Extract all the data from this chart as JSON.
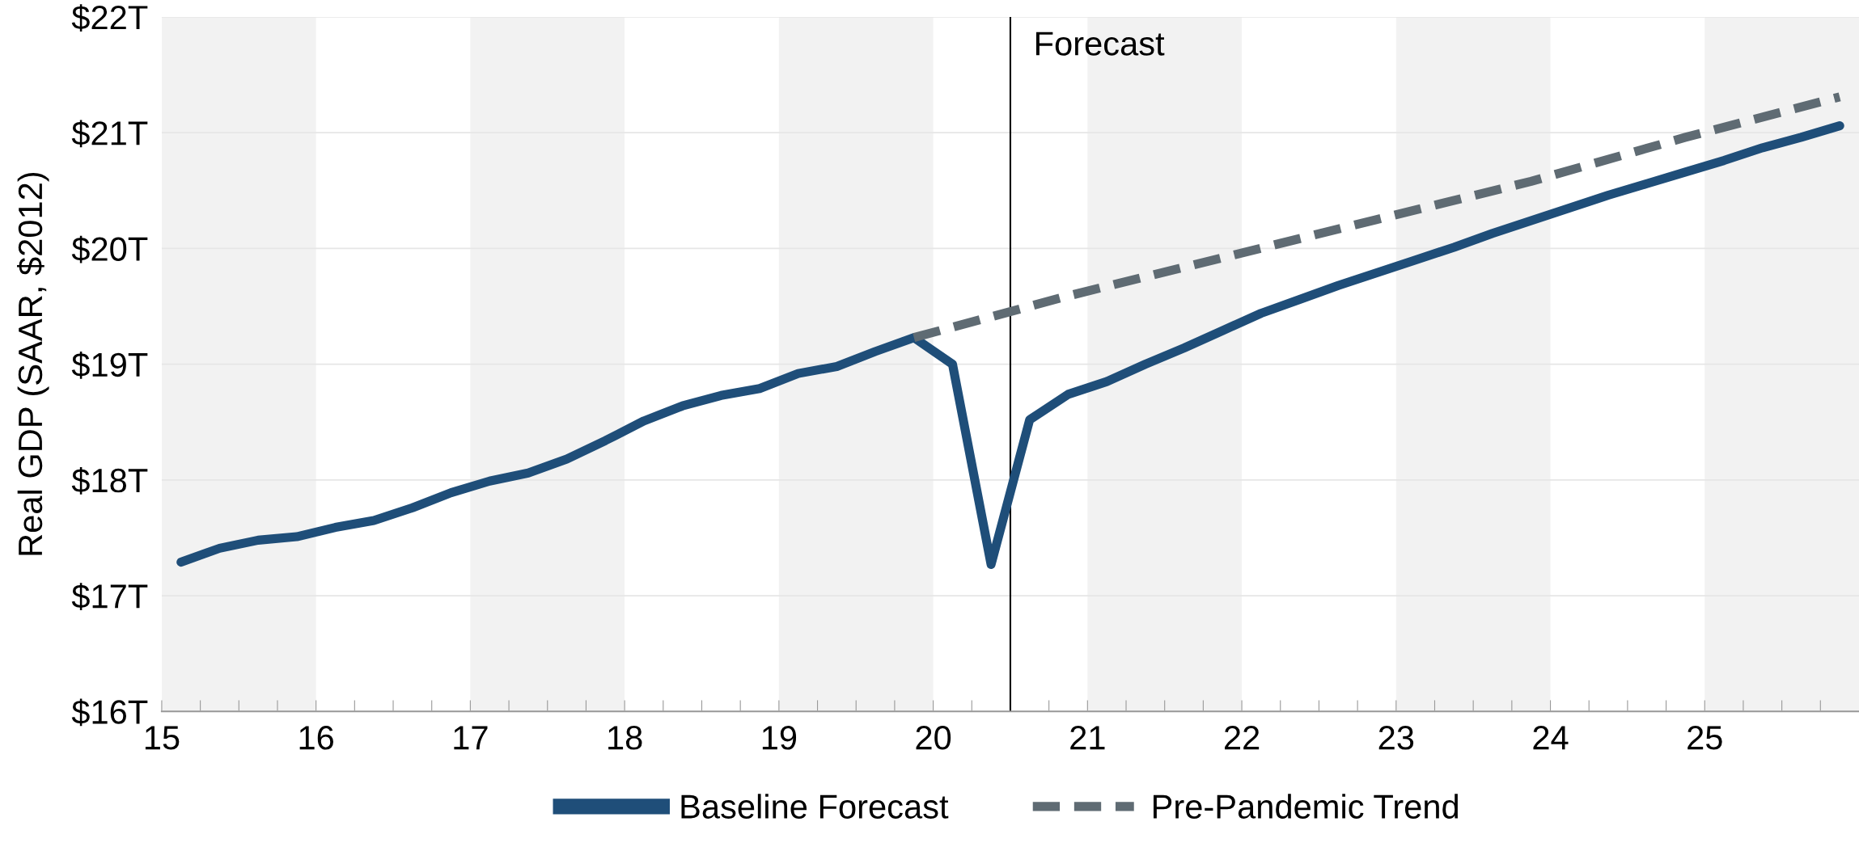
{
  "chart_data": {
    "type": "line",
    "ylabel": "Real GDP (SAAR, $2012)",
    "xlim": [
      15,
      26
    ],
    "ylim": [
      16,
      22
    ],
    "xticks": [
      15,
      {
        "value": 15.25,
        "label": null
      },
      {
        "value": 15.5,
        "label": null
      },
      {
        "value": 15.75,
        "label": null
      },
      16,
      {
        "value": 16.25,
        "label": null
      },
      {
        "value": 16.5,
        "label": null
      },
      {
        "value": 16.75,
        "label": null
      },
      17,
      {
        "value": 17.25,
        "label": null
      },
      {
        "value": 17.5,
        "label": null
      },
      {
        "value": 17.75,
        "label": null
      },
      18,
      {
        "value": 18.25,
        "label": null
      },
      {
        "value": 18.5,
        "label": null
      },
      {
        "value": 18.75,
        "label": null
      },
      19,
      {
        "value": 19.25,
        "label": null
      },
      {
        "value": 19.5,
        "label": null
      },
      {
        "value": 19.75,
        "label": null
      },
      20,
      {
        "value": 20.25,
        "label": null
      },
      {
        "value": 20.5,
        "label": null
      },
      {
        "value": 20.75,
        "label": null
      },
      21,
      {
        "value": 21.25,
        "label": null
      },
      {
        "value": 21.5,
        "label": null
      },
      {
        "value": 21.75,
        "label": null
      },
      22,
      {
        "value": 22.25,
        "label": null
      },
      {
        "value": 22.5,
        "label": null
      },
      {
        "value": 22.75,
        "label": null
      },
      23,
      {
        "value": 23.25,
        "label": null
      },
      {
        "value": 23.5,
        "label": null
      },
      {
        "value": 23.75,
        "label": null
      },
      24,
      {
        "value": 24.25,
        "label": null
      },
      {
        "value": 24.5,
        "label": null
      },
      {
        "value": 24.75,
        "label": null
      },
      25,
      {
        "value": 25.25,
        "label": null
      },
      {
        "value": 25.5,
        "label": null
      },
      {
        "value": 25.75,
        "label": null
      }
    ],
    "yticks": [
      {
        "value": 16,
        "label": "$16T"
      },
      {
        "value": 17,
        "label": "$17T"
      },
      {
        "value": 18,
        "label": "$18T"
      },
      {
        "value": 19,
        "label": "$19T"
      },
      {
        "value": 20,
        "label": "$20T"
      },
      {
        "value": 21,
        "label": "$21T"
      },
      {
        "value": 22,
        "label": "$22T"
      }
    ],
    "grid": "y",
    "legend": "bottom",
    "marker": "none",
    "series": [
      {
        "name": "Baseline Forecast",
        "color": "#1f4e79",
        "line_style": "solid",
        "x": [
          15.125,
          15.375,
          15.625,
          15.875,
          16.125,
          16.375,
          16.625,
          16.875,
          17.125,
          17.375,
          17.625,
          17.875,
          18.125,
          18.375,
          18.625,
          18.875,
          19.125,
          19.375,
          19.625,
          19.875,
          20.125,
          20.375,
          20.625,
          20.875,
          21.125,
          21.375,
          21.625,
          21.875,
          22.125,
          22.375,
          22.625,
          22.875,
          23.125,
          23.375,
          23.625,
          23.875,
          24.125,
          24.375,
          24.625,
          24.875,
          25.125,
          25.375,
          25.625,
          25.875
        ],
        "values": [
          17.29,
          17.41,
          17.48,
          17.51,
          17.59,
          17.65,
          17.76,
          17.89,
          17.99,
          18.06,
          18.18,
          18.34,
          18.51,
          18.64,
          18.73,
          18.79,
          18.92,
          18.98,
          19.11,
          19.23,
          19.0,
          17.27,
          18.52,
          18.74,
          18.85,
          19.0,
          19.14,
          19.29,
          19.44,
          19.56,
          19.68,
          19.79,
          19.9,
          20.01,
          20.13,
          20.24,
          20.35,
          20.46,
          20.56,
          20.66,
          20.76,
          20.87,
          20.96,
          21.06
        ]
      },
      {
        "name": "Pre-Pandemic Trend",
        "color": "#5f6b73",
        "line_style": "dashed",
        "x": [
          19.875,
          20.875,
          21.875,
          22.875,
          23.875,
          24.875,
          25.875
        ],
        "values": [
          19.23,
          19.59,
          19.92,
          20.25,
          20.58,
          20.96,
          21.31
        ]
      }
    ],
    "ref_lines": [
      {
        "axis": "x",
        "value": 20.5,
        "label": "Forecast",
        "color": "#000000"
      }
    ],
    "bands": [
      {
        "axis": "x",
        "from": 15,
        "to": 16,
        "label": null,
        "color": "#f2f2f2"
      },
      {
        "axis": "x",
        "from": 17,
        "to": 18,
        "label": null,
        "color": "#f2f2f2"
      },
      {
        "axis": "x",
        "from": 19,
        "to": 20,
        "label": null,
        "color": "#f2f2f2"
      },
      {
        "axis": "x",
        "from": 21,
        "to": 22,
        "label": null,
        "color": "#f2f2f2"
      },
      {
        "axis": "x",
        "from": 23,
        "to": 24,
        "label": null,
        "color": "#f2f2f2"
      },
      {
        "axis": "x",
        "from": 25,
        "to": 26,
        "label": null,
        "color": "#f2f2f2"
      }
    ]
  }
}
